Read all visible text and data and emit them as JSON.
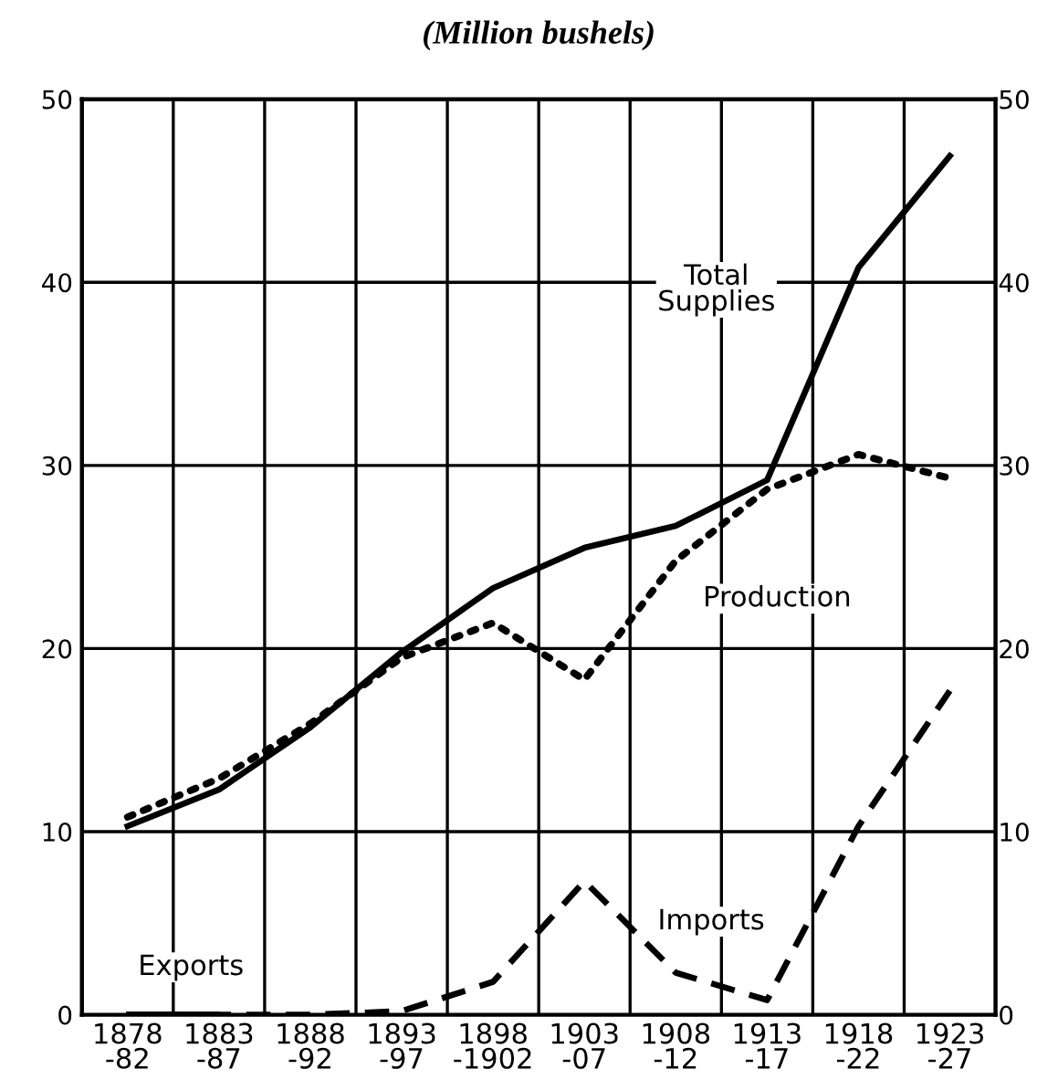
{
  "chart_data": {
    "type": "line",
    "title": "(Million bushels)",
    "categories": [
      "1878\n-82",
      "1883\n-87",
      "1888\n-92",
      "1893\n-97",
      "1898\n-1902",
      "1903\n-07",
      "1908\n-12",
      "1913\n-17",
      "1918\n-22",
      "1923\n-27"
    ],
    "series": [
      {
        "name": "Total\nSupplies",
        "color": "#000000",
        "line_style": "solid",
        "values": [
          10.3,
          12.3,
          15.7,
          19.8,
          23.3,
          25.5,
          26.7,
          29.2,
          40.8,
          46.9
        ]
      },
      {
        "name": "Production",
        "color": "#000000",
        "line_style": "dotted",
        "values": [
          10.8,
          12.9,
          15.9,
          19.5,
          21.4,
          18.3,
          24.8,
          28.7,
          30.6,
          29.3
        ]
      },
      {
        "name": "Imports",
        "color": "#000000",
        "line_style": "dashed",
        "values": [
          0,
          0,
          0,
          0.2,
          1.8,
          7.3,
          2.3,
          0.8,
          10.3,
          17.7
        ]
      },
      {
        "name": "Exports",
        "color": "#000000",
        "line_style": "solid",
        "values": [
          0.1,
          0.1,
          null,
          null,
          null,
          null,
          null,
          null,
          null,
          null
        ]
      }
    ],
    "ylim": [
      0,
      50
    ],
    "yticks": [
      0,
      10,
      20,
      30,
      40,
      50
    ],
    "y2lim": [
      0,
      50
    ],
    "y2ticks": [
      0,
      10,
      20,
      30,
      40,
      50
    ],
    "grid": true,
    "legend": false,
    "marker": "none"
  }
}
